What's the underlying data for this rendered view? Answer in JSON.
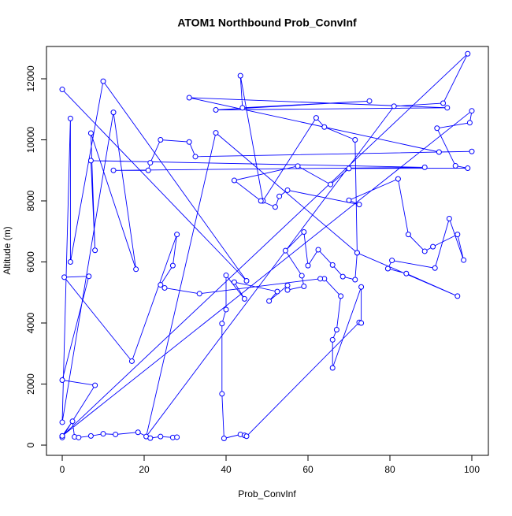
{
  "chart_data": {
    "type": "line",
    "title": "ATOM1 Northbound Prob_ConvInf",
    "x_label": "Prob_ConvInf",
    "y_label": "Altitude (m)",
    "xlim": [
      -3.85,
      104.04
    ],
    "ylim": [
      -335,
      13058
    ],
    "xticks": [
      0,
      20,
      40,
      60,
      80,
      100
    ],
    "yticks": [
      0,
      2000,
      4000,
      6000,
      8000,
      10000,
      12000
    ],
    "series": [
      {
        "name": "Prob_ConvInf",
        "color": "#0000ff",
        "marker": "circle",
        "x": [
          0,
          45,
          10,
          2,
          2,
          0,
          12.5,
          18,
          7,
          8,
          7,
          88.5,
          12.5,
          21,
          21.5,
          24,
          31,
          32.5,
          100,
          92,
          31,
          94,
          37.5,
          75,
          44,
          43.5,
          49,
          62,
          64,
          71.5,
          72,
          37.5,
          20.5,
          81,
          93,
          99,
          0,
          100,
          99.5,
          91.5,
          96,
          99,
          70,
          65.5,
          57.5,
          42,
          48.5,
          52,
          53,
          55,
          72.5,
          70,
          82,
          84.5,
          88.5,
          90.5,
          96.5,
          98,
          94.5,
          91,
          80.5,
          79.5,
          84,
          96.5,
          72,
          71.5,
          68.5,
          66,
          62.5,
          60,
          59,
          54.5,
          58.5,
          59,
          55,
          55,
          50.5,
          52.5,
          42,
          44.5,
          40,
          40,
          39,
          39,
          39.5,
          43.5,
          44.5,
          45,
          72.5,
          73,
          73,
          66,
          66,
          67,
          68,
          64,
          63,
          33.5,
          25,
          24,
          27,
          28,
          17,
          0.5,
          6.5,
          0,
          8,
          0,
          0,
          2.5,
          3,
          4,
          7,
          10,
          13,
          18.5,
          21.5,
          24,
          27,
          28
        ],
        "values": [
          11650,
          5380,
          11920,
          6000,
          10700,
          750,
          10900,
          5760,
          10220,
          6380,
          9320,
          9100,
          9000,
          9000,
          9250,
          10000,
          9930,
          9450,
          9620,
          9600,
          11380,
          11050,
          10980,
          11270,
          11050,
          12100,
          8000,
          10720,
          10420,
          10000,
          6300,
          10230,
          280,
          11100,
          11200,
          12820,
          300,
          10950,
          10560,
          10380,
          9150,
          9070,
          9060,
          8540,
          9140,
          8670,
          8000,
          7800,
          8150,
          8350,
          7880,
          8020,
          8720,
          6900,
          6350,
          6500,
          6900,
          6060,
          7420,
          5800,
          6050,
          5780,
          5620,
          4880,
          6300,
          5420,
          5520,
          5900,
          6400,
          5880,
          6980,
          6370,
          5550,
          5200,
          5080,
          5230,
          4720,
          5030,
          5340,
          4790,
          5560,
          4440,
          3980,
          1680,
          220,
          350,
          320,
          290,
          4020,
          4000,
          5180,
          2530,
          3450,
          3780,
          4880,
          5450,
          5450,
          4960,
          5150,
          5250,
          5880,
          6900,
          2750,
          5500,
          5530,
          2130,
          1960,
          250,
          300,
          780,
          270,
          250,
          300,
          370,
          350,
          420,
          230,
          280,
          250,
          260
        ]
      }
    ]
  }
}
